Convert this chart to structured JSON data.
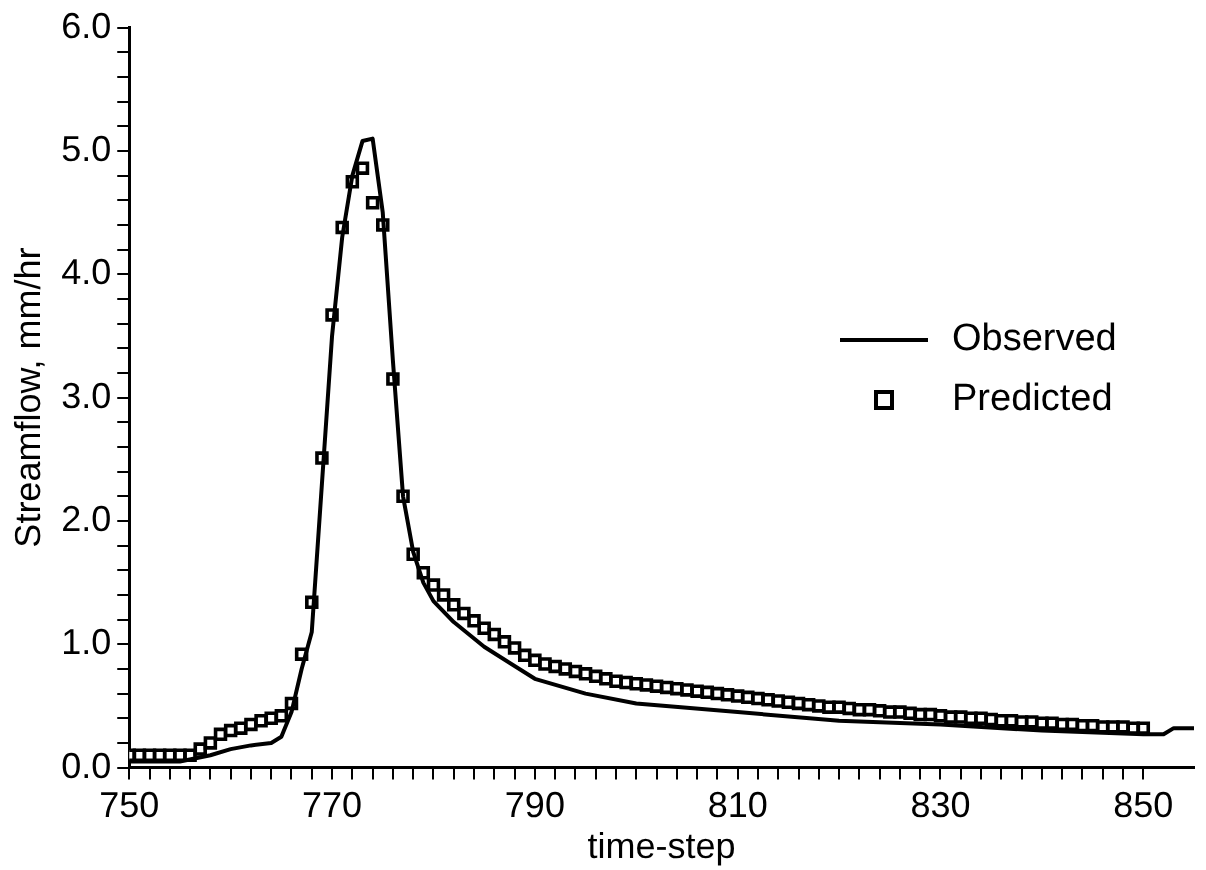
{
  "chart_data": {
    "type": "line",
    "xlabel": "time-step",
    "ylabel": "Streamflow, mm/hr",
    "xlim": [
      750,
      855
    ],
    "ylim": [
      0,
      6
    ],
    "xticks": [
      750,
      {
        "value": 752,
        "label": null
      },
      {
        "value": 754,
        "label": null
      },
      {
        "value": 756,
        "label": null
      },
      {
        "value": 758,
        "label": null
      },
      {
        "value": 760,
        "label": null
      },
      {
        "value": 762,
        "label": null
      },
      {
        "value": 764,
        "label": null
      },
      {
        "value": 766,
        "label": null
      },
      {
        "value": 768,
        "label": null
      },
      770,
      {
        "value": 772,
        "label": null
      },
      {
        "value": 774,
        "label": null
      },
      {
        "value": 776,
        "label": null
      },
      {
        "value": 778,
        "label": null
      },
      {
        "value": 780,
        "label": null
      },
      {
        "value": 782,
        "label": null
      },
      {
        "value": 784,
        "label": null
      },
      {
        "value": 786,
        "label": null
      },
      {
        "value": 788,
        "label": null
      },
      790,
      {
        "value": 792,
        "label": null
      },
      {
        "value": 794,
        "label": null
      },
      {
        "value": 796,
        "label": null
      },
      {
        "value": 798,
        "label": null
      },
      {
        "value": 800,
        "label": null
      },
      {
        "value": 802,
        "label": null
      },
      {
        "value": 804,
        "label": null
      },
      {
        "value": 806,
        "label": null
      },
      {
        "value": 808,
        "label": null
      },
      810,
      {
        "value": 812,
        "label": null
      },
      {
        "value": 814,
        "label": null
      },
      {
        "value": 816,
        "label": null
      },
      {
        "value": 818,
        "label": null
      },
      {
        "value": 820,
        "label": null
      },
      {
        "value": 822,
        "label": null
      },
      {
        "value": 824,
        "label": null
      },
      {
        "value": 826,
        "label": null
      },
      {
        "value": 828,
        "label": null
      },
      830,
      {
        "value": 832,
        "label": null
      },
      {
        "value": 834,
        "label": null
      },
      {
        "value": 836,
        "label": null
      },
      {
        "value": 838,
        "label": null
      },
      {
        "value": 840,
        "label": null
      },
      {
        "value": 842,
        "label": null
      },
      {
        "value": 844,
        "label": null
      },
      {
        "value": 846,
        "label": null
      },
      {
        "value": 848,
        "label": null
      },
      850
    ],
    "yticks": [
      {
        "value": 0,
        "label": "0.0"
      },
      {
        "value": 0.2,
        "label": null
      },
      {
        "value": 0.4,
        "label": null
      },
      {
        "value": 0.6,
        "label": null
      },
      {
        "value": 0.8,
        "label": null
      },
      {
        "value": 1,
        "label": "1.0"
      },
      {
        "value": 1.2,
        "label": null
      },
      {
        "value": 1.4,
        "label": null
      },
      {
        "value": 1.6,
        "label": null
      },
      {
        "value": 1.8,
        "label": null
      },
      {
        "value": 2,
        "label": "2.0"
      },
      {
        "value": 2.2,
        "label": null
      },
      {
        "value": 2.4,
        "label": null
      },
      {
        "value": 2.6,
        "label": null
      },
      {
        "value": 2.8,
        "label": null
      },
      {
        "value": 3,
        "label": "3.0"
      },
      {
        "value": 3.2,
        "label": null
      },
      {
        "value": 3.4,
        "label": null
      },
      {
        "value": 3.6,
        "label": null
      },
      {
        "value": 3.8,
        "label": null
      },
      {
        "value": 4,
        "label": "4.0"
      },
      {
        "value": 4.2,
        "label": null
      },
      {
        "value": 4.4,
        "label": null
      },
      {
        "value": 4.6,
        "label": null
      },
      {
        "value": 4.8,
        "label": null
      },
      {
        "value": 5,
        "label": "5.0"
      },
      {
        "value": 5.2,
        "label": null
      },
      {
        "value": 5.4,
        "label": null
      },
      {
        "value": 5.6,
        "label": null
      },
      {
        "value": 5.8,
        "label": null
      },
      {
        "value": 6,
        "label": "6.0"
      }
    ],
    "grid": false,
    "legend": "right",
    "series": [
      {
        "name": "Observed",
        "type": "line",
        "marker": "none",
        "line_style": "solid",
        "color": "#000000",
        "x": [
          750,
          755,
          758,
          760,
          762,
          764,
          765,
          766,
          767,
          768,
          769,
          770,
          771,
          772,
          773,
          774,
          775,
          776,
          777,
          778,
          779,
          780,
          782,
          785,
          790,
          795,
          800,
          810,
          820,
          830,
          840,
          850,
          852,
          853,
          855
        ],
        "values": [
          0.05,
          0.05,
          0.1,
          0.15,
          0.18,
          0.2,
          0.25,
          0.45,
          0.8,
          1.1,
          2.3,
          3.5,
          4.3,
          4.8,
          5.08,
          5.1,
          4.5,
          3.3,
          2.2,
          1.75,
          1.5,
          1.35,
          1.18,
          0.98,
          0.72,
          0.6,
          0.52,
          0.45,
          0.38,
          0.35,
          0.3,
          0.27,
          0.27,
          0.32,
          0.32
        ]
      },
      {
        "name": "Predicted",
        "type": "scatter",
        "marker": "square",
        "color": "#000000",
        "x": [
          750,
          751,
          752,
          753,
          754,
          755,
          756,
          757,
          758,
          759,
          760,
          761,
          762,
          763,
          764,
          765,
          766,
          767,
          768,
          769,
          770,
          771,
          772,
          773,
          774,
          775,
          776,
          777,
          778,
          779,
          780,
          781,
          782,
          783,
          784,
          785,
          786,
          787,
          788,
          789,
          790,
          791,
          792,
          793,
          794,
          795,
          796,
          797,
          798,
          799,
          800,
          801,
          802,
          803,
          804,
          805,
          806,
          807,
          808,
          809,
          810,
          811,
          812,
          813,
          814,
          815,
          816,
          817,
          818,
          819,
          820,
          821,
          822,
          823,
          824,
          825,
          826,
          827,
          828,
          829,
          830,
          831,
          832,
          833,
          834,
          835,
          836,
          837,
          838,
          839,
          840,
          841,
          842,
          843,
          844,
          845,
          846,
          847,
          848,
          849,
          850
        ],
        "values": [
          0.1,
          0.1,
          0.1,
          0.1,
          0.1,
          0.1,
          0.1,
          0.15,
          0.2,
          0.27,
          0.3,
          0.32,
          0.35,
          0.38,
          0.4,
          0.42,
          0.52,
          0.92,
          1.34,
          2.51,
          3.67,
          4.38,
          4.75,
          4.86,
          4.58,
          4.4,
          3.15,
          2.2,
          1.73,
          1.58,
          1.48,
          1.4,
          1.32,
          1.25,
          1.19,
          1.13,
          1.08,
          1.02,
          0.97,
          0.91,
          0.87,
          0.84,
          0.82,
          0.8,
          0.78,
          0.76,
          0.74,
          0.72,
          0.7,
          0.69,
          0.68,
          0.67,
          0.66,
          0.65,
          0.64,
          0.63,
          0.62,
          0.61,
          0.6,
          0.59,
          0.58,
          0.57,
          0.56,
          0.55,
          0.54,
          0.53,
          0.52,
          0.51,
          0.5,
          0.49,
          0.49,
          0.48,
          0.47,
          0.47,
          0.46,
          0.45,
          0.45,
          0.44,
          0.43,
          0.43,
          0.42,
          0.41,
          0.41,
          0.4,
          0.4,
          0.39,
          0.38,
          0.38,
          0.37,
          0.37,
          0.36,
          0.36,
          0.35,
          0.35,
          0.34,
          0.34,
          0.33,
          0.33,
          0.33,
          0.32,
          0.32
        ]
      }
    ]
  }
}
